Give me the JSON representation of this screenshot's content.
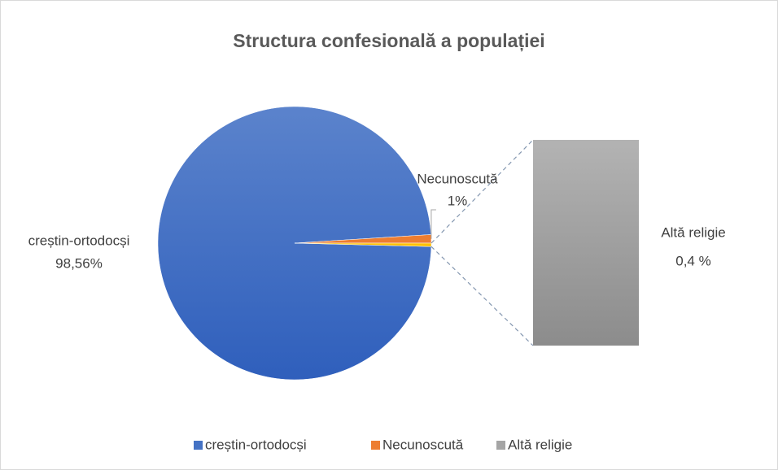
{
  "chart_data": {
    "type": "pie-of-bar",
    "title": "Structura confesională a populației",
    "categories": [
      "creștin-ortodocși",
      "Necunoscută",
      "Altă religie"
    ],
    "values": [
      98.56,
      1,
      0.4
    ],
    "value_labels": [
      "98,56%",
      "1%",
      "0,4 %"
    ],
    "colors": [
      "#4472c4",
      "#ed7d31",
      "#a5a5a5"
    ],
    "split_slice_color": "#ffc000",
    "legend": "bottom"
  }
}
